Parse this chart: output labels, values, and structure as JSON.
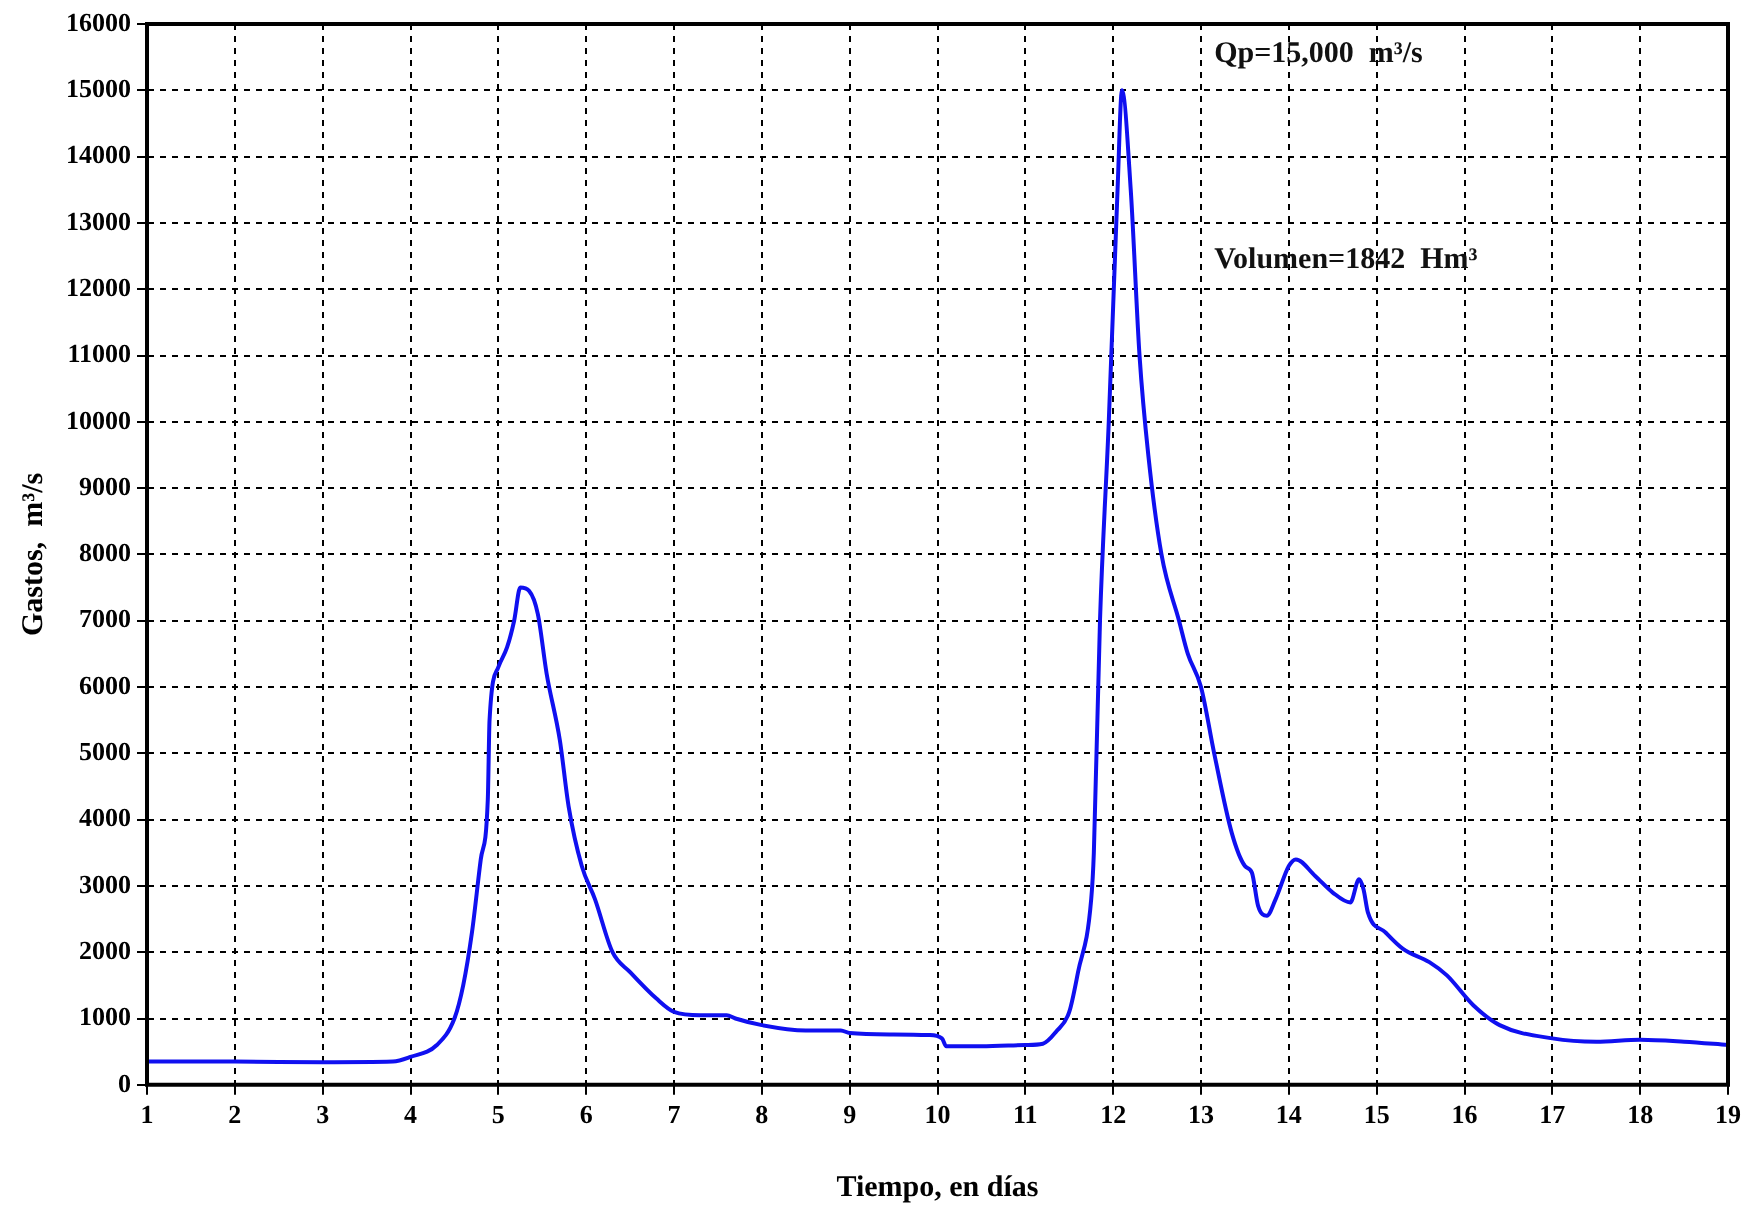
{
  "chart_data": {
    "type": "line",
    "xlabel": "Tiempo, en días",
    "ylabel": "Gastos,  m³/s",
    "annotations": [
      "Qp=15,000  m³/s",
      "Volumen=1842  Hm³"
    ],
    "xlim": [
      1,
      19
    ],
    "xticks": [
      1,
      2,
      3,
      4,
      5,
      6,
      7,
      8,
      9,
      10,
      11,
      12,
      13,
      14,
      15,
      16,
      17,
      18,
      19
    ],
    "ylim": [
      0,
      16000
    ],
    "yticks": [
      0,
      1000,
      2000,
      3000,
      4000,
      5000,
      6000,
      7000,
      8000,
      9000,
      10000,
      11000,
      12000,
      13000,
      14000,
      15000,
      16000
    ],
    "grid": true,
    "legend": false,
    "marker": "none",
    "line_style": "solid",
    "series": [
      {
        "color": "#1010f0",
        "x": [
          1,
          2,
          3,
          3.8,
          4,
          4.3,
          4.5,
          4.6,
          4.7,
          4.8,
          4.88,
          4.9,
          5,
          5.1,
          5.18,
          5.25,
          5.35,
          5.45,
          5.55,
          5.7,
          5.8,
          5.95,
          6.1,
          6.3,
          6.5,
          6.8,
          7,
          7.3,
          7.6,
          7.7,
          8,
          8.5,
          8.9,
          9,
          9.5,
          9.9,
          10.05,
          10.1,
          10.5,
          11,
          11.2,
          11.35,
          11.5,
          11.6,
          11.75,
          11.78,
          11.85,
          11.95,
          12.05,
          12.1,
          12.2,
          12.3,
          12.4,
          12.55,
          12.75,
          12.85,
          13,
          13.15,
          13.35,
          13.5,
          13.58,
          13.65,
          13.75,
          13.85,
          14,
          14.08,
          14.3,
          14.5,
          14.7,
          14.8,
          14.85,
          14.9,
          15.1,
          15.3,
          15.6,
          15.8,
          16.1,
          16.4,
          17,
          17.5,
          18,
          18.5,
          19
        ],
        "values": [
          350,
          350,
          340,
          350,
          420,
          600,
          1000,
          1500,
          2300,
          3400,
          4300,
          5500,
          6300,
          6600,
          7000,
          7500,
          7450,
          7100,
          6200,
          5200,
          4200,
          3300,
          2800,
          2000,
          1700,
          1300,
          1100,
          1050,
          1050,
          1000,
          900,
          820,
          820,
          780,
          760,
          750,
          700,
          580,
          580,
          600,
          620,
          800,
          1100,
          1700,
          2800,
          3500,
          7000,
          10000,
          13500,
          15000,
          13500,
          11000,
          9500,
          8000,
          7000,
          6500,
          6000,
          5000,
          3800,
          3300,
          3200,
          2700,
          2550,
          2800,
          3300,
          3400,
          3150,
          2900,
          2750,
          3100,
          2950,
          2600,
          2300,
          2050,
          1850,
          1650,
          1200,
          900,
          700,
          650,
          680,
          650,
          600
        ]
      }
    ]
  }
}
